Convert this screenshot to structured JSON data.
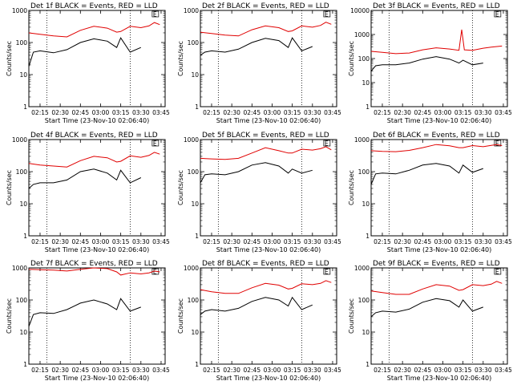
{
  "chart_data": [
    {
      "type": "line",
      "title": "Det 1f BLACK = Events, RED = LLD",
      "flag": "E",
      "xlabel": "Start Time (23-Nov-10 02:06:40)",
      "ylabel": "Counts/sec",
      "y_scale": "log",
      "ylim": [
        1,
        1000
      ],
      "y_ticks": [
        "1",
        "10",
        "100",
        "1000"
      ],
      "x_ticks": [
        "02:15",
        "02:30",
        "02:45",
        "03:00",
        "03:15",
        "03:30",
        "03:45"
      ],
      "xlim": [
        "02:06:40",
        "03:48:00"
      ],
      "vlines": [
        "02:20:00",
        "03:22:00"
      ],
      "series": [
        {
          "color": "#e00000",
          "x": [
            "02:06:40",
            "02:15",
            "02:25",
            "02:35",
            "02:45",
            "02:55",
            "03:05",
            "03:12",
            "03:15",
            "03:22",
            "03:30",
            "03:36",
            "03:40",
            "03:44"
          ],
          "y": [
            200,
            180,
            160,
            150,
            240,
            320,
            280,
            210,
            220,
            320,
            290,
            330,
            420,
            360
          ]
        },
        {
          "color": "#000000",
          "x": [
            "02:06:40",
            "02:10",
            "02:15",
            "02:25",
            "02:35",
            "02:45",
            "02:55",
            "03:05",
            "03:12",
            "03:15",
            "03:22",
            "03:30"
          ],
          "y": [
            18,
            50,
            55,
            48,
            60,
            100,
            130,
            110,
            70,
            140,
            50,
            70
          ]
        }
      ]
    },
    {
      "type": "line",
      "title": "Det 2f BLACK = Events, RED = LLD",
      "flag": "E",
      "xlabel": "Start Time (23-Nov-10 02:06:40)",
      "ylabel": "Counts/sec",
      "y_scale": "log",
      "ylim": [
        1,
        1000
      ],
      "y_ticks": [
        "1",
        "10",
        "100",
        "1000"
      ],
      "x_ticks": [
        "02:15",
        "02:30",
        "02:45",
        "03:00",
        "03:15",
        "03:30",
        "03:45"
      ],
      "xlim": [
        "02:06:40",
        "03:48:00"
      ],
      "vlines": [
        "02:20:00",
        "03:22:00"
      ],
      "series": [
        {
          "color": "#e00000",
          "x": [
            "02:06:40",
            "02:15",
            "02:25",
            "02:35",
            "02:45",
            "02:55",
            "03:05",
            "03:12",
            "03:15",
            "03:22",
            "03:30",
            "03:36",
            "03:40",
            "03:44"
          ],
          "y": [
            210,
            190,
            170,
            160,
            250,
            330,
            290,
            220,
            230,
            330,
            300,
            340,
            430,
            370
          ]
        },
        {
          "color": "#000000",
          "x": [
            "02:06:40",
            "02:10",
            "02:15",
            "02:25",
            "02:35",
            "02:45",
            "02:55",
            "03:05",
            "03:12",
            "03:15",
            "03:22",
            "03:30"
          ],
          "y": [
            40,
            50,
            55,
            50,
            62,
            100,
            135,
            115,
            70,
            140,
            55,
            75
          ]
        }
      ]
    },
    {
      "type": "line",
      "title": "Det 3f BLACK = Events, RED = LLD",
      "flag": "E",
      "xlabel": "Start Time (23-Nov-10 02:06:40)",
      "ylabel": "Counts/sec",
      "y_scale": "log",
      "ylim": [
        1,
        10000
      ],
      "y_ticks": [
        "1",
        "10",
        "100",
        "1000",
        "10000"
      ],
      "x_ticks": [
        "02:15",
        "02:30",
        "02:45",
        "03:00",
        "03:15",
        "03:30",
        "03:45"
      ],
      "xlim": [
        "02:06:40",
        "03:48:00"
      ],
      "vlines": [
        "02:20:00",
        "03:22:00"
      ],
      "series": [
        {
          "color": "#e00000",
          "x": [
            "02:06:40",
            "02:15",
            "02:25",
            "02:35",
            "02:45",
            "02:55",
            "03:05",
            "03:12",
            "03:14",
            "03:16",
            "03:22",
            "03:30",
            "03:36",
            "03:44"
          ],
          "y": [
            200,
            180,
            160,
            170,
            230,
            280,
            250,
            220,
            1600,
            230,
            220,
            270,
            300,
            330
          ]
        },
        {
          "color": "#000000",
          "x": [
            "02:06:40",
            "02:10",
            "02:15",
            "02:25",
            "02:35",
            "02:45",
            "02:55",
            "03:05",
            "03:12",
            "03:15",
            "03:22",
            "03:30"
          ],
          "y": [
            30,
            50,
            55,
            55,
            65,
            95,
            120,
            95,
            65,
            85,
            55,
            65
          ]
        }
      ]
    },
    {
      "type": "line",
      "title": "Det 4f BLACK = Events, RED = LLD",
      "flag": "E",
      "xlabel": "Start Time (23-Nov-10 02:06:40)",
      "ylabel": "Counts/sec",
      "y_scale": "log",
      "ylim": [
        1,
        1000
      ],
      "y_ticks": [
        "1",
        "10",
        "100",
        "1000"
      ],
      "x_ticks": [
        "02:15",
        "02:30",
        "02:45",
        "03:00",
        "03:15",
        "03:30",
        "03:45"
      ],
      "xlim": [
        "02:06:40",
        "03:48:00"
      ],
      "vlines": [
        "02:20:00",
        "03:22:00"
      ],
      "series": [
        {
          "color": "#e00000",
          "x": [
            "02:06:40",
            "02:15",
            "02:25",
            "02:35",
            "02:45",
            "02:55",
            "03:05",
            "03:12",
            "03:15",
            "03:22",
            "03:30",
            "03:36",
            "03:40",
            "03:44"
          ],
          "y": [
            180,
            160,
            150,
            140,
            220,
            300,
            270,
            200,
            210,
            310,
            280,
            320,
            400,
            350
          ]
        },
        {
          "color": "#000000",
          "x": [
            "02:06:40",
            "02:10",
            "02:15",
            "02:25",
            "02:35",
            "02:45",
            "02:55",
            "03:05",
            "03:12",
            "03:15",
            "03:22",
            "03:30"
          ],
          "y": [
            30,
            40,
            45,
            45,
            55,
            100,
            120,
            90,
            55,
            110,
            45,
            65
          ]
        }
      ]
    },
    {
      "type": "line",
      "title": "Det 5f BLACK = Events, RED = LLD",
      "flag": "E",
      "xlabel": "Start Time (23-Nov-10 02:06:40)",
      "ylabel": "Counts/sec",
      "y_scale": "log",
      "ylim": [
        1,
        1000
      ],
      "y_ticks": [
        "1",
        "10",
        "100",
        "1000"
      ],
      "x_ticks": [
        "02:15",
        "02:30",
        "02:45",
        "03:00",
        "03:15",
        "03:30",
        "03:45"
      ],
      "xlim": [
        "02:06:40",
        "03:48:00"
      ],
      "vlines": [
        "02:20:00",
        "03:22:00"
      ],
      "series": [
        {
          "color": "#e00000",
          "x": [
            "02:06:40",
            "02:15",
            "02:25",
            "02:35",
            "02:45",
            "02:55",
            "03:05",
            "03:12",
            "03:15",
            "03:22",
            "03:30",
            "03:36",
            "03:40",
            "03:44"
          ],
          "y": [
            260,
            250,
            240,
            260,
            380,
            560,
            450,
            380,
            380,
            500,
            470,
            520,
            600,
            480
          ]
        },
        {
          "color": "#000000",
          "x": [
            "02:06:40",
            "02:10",
            "02:15",
            "02:25",
            "02:35",
            "02:45",
            "02:55",
            "03:05",
            "03:12",
            "03:15",
            "03:22",
            "03:30"
          ],
          "y": [
            45,
            80,
            85,
            80,
            100,
            160,
            190,
            150,
            90,
            120,
            90,
            110
          ]
        }
      ]
    },
    {
      "type": "line",
      "title": "Det 6f BLACK = Events, RED = LLD",
      "flag": "E",
      "xlabel": "Start Time (23-Nov-10 02:06:40)",
      "ylabel": "Counts/sec",
      "y_scale": "log",
      "ylim": [
        1,
        1000
      ],
      "y_ticks": [
        "1",
        "10",
        "100",
        "1000"
      ],
      "x_ticks": [
        "02:15",
        "02:30",
        "02:45",
        "03:00",
        "03:15",
        "03:30",
        "03:45"
      ],
      "xlim": [
        "02:06:40",
        "03:48:00"
      ],
      "vlines": [
        "02:20:00",
        "03:22:00"
      ],
      "series": [
        {
          "color": "#e00000",
          "x": [
            "02:06:40",
            "02:15",
            "02:25",
            "02:35",
            "02:45",
            "02:55",
            "03:05",
            "03:12",
            "03:15",
            "03:22",
            "03:30",
            "03:36",
            "03:40",
            "03:44"
          ],
          "y": [
            450,
            430,
            420,
            460,
            560,
            700,
            640,
            560,
            560,
            650,
            600,
            660,
            700,
            650
          ]
        },
        {
          "color": "#000000",
          "x": [
            "02:06:40",
            "02:10",
            "02:15",
            "02:25",
            "02:35",
            "02:45",
            "02:55",
            "03:05",
            "03:12",
            "03:15",
            "03:22",
            "03:30"
          ],
          "y": [
            40,
            85,
            90,
            85,
            110,
            160,
            180,
            150,
            90,
            160,
            95,
            125
          ]
        }
      ]
    },
    {
      "type": "line",
      "title": "Det 7f BLACK = Events, RED = LLD",
      "flag": "E",
      "xlabel": "Start Time (23-Nov-10 02:06:40)",
      "ylabel": "Counts/sec",
      "y_scale": "log",
      "ylim": [
        1,
        1000
      ],
      "y_ticks": [
        "1",
        "10",
        "100",
        "1000"
      ],
      "x_ticks": [
        "02:15",
        "02:30",
        "02:45",
        "03:00",
        "03:15",
        "03:30",
        "03:45"
      ],
      "xlim": [
        "02:06:40",
        "03:48:00"
      ],
      "vlines": [
        "02:20:00",
        "03:22:00"
      ],
      "series": [
        {
          "color": "#e00000",
          "x": [
            "02:06:40",
            "02:15",
            "02:25",
            "02:35",
            "02:45",
            "02:55",
            "03:05",
            "03:12",
            "03:15",
            "03:22",
            "03:30",
            "03:36",
            "03:40",
            "03:44"
          ],
          "y": [
            900,
            880,
            850,
            800,
            900,
            1000,
            950,
            750,
            600,
            700,
            650,
            700,
            800,
            750
          ]
        },
        {
          "color": "#000000",
          "x": [
            "02:06:40",
            "02:10",
            "02:15",
            "02:25",
            "02:35",
            "02:45",
            "02:55",
            "03:05",
            "03:12",
            "03:15",
            "03:22",
            "03:30"
          ],
          "y": [
            15,
            35,
            40,
            38,
            50,
            80,
            100,
            75,
            50,
            110,
            45,
            60
          ]
        }
      ]
    },
    {
      "type": "line",
      "title": "Det 8f BLACK = Events, RED = LLD",
      "flag": "E",
      "xlabel": "Start Time (23-Nov-10 02:06:40)",
      "ylabel": "Counts/sec",
      "y_scale": "log",
      "ylim": [
        1,
        1000
      ],
      "y_ticks": [
        "1",
        "10",
        "100",
        "1000"
      ],
      "x_ticks": [
        "02:15",
        "02:30",
        "02:45",
        "03:00",
        "03:15",
        "03:30",
        "03:45"
      ],
      "xlim": [
        "02:06:40",
        "03:48:00"
      ],
      "vlines": [
        "02:20:00",
        "03:22:00"
      ],
      "series": [
        {
          "color": "#e00000",
          "x": [
            "02:06:40",
            "02:15",
            "02:25",
            "02:35",
            "02:45",
            "02:55",
            "03:05",
            "03:12",
            "03:15",
            "03:22",
            "03:30",
            "03:36",
            "03:40",
            "03:44"
          ],
          "y": [
            210,
            180,
            160,
            160,
            240,
            330,
            290,
            220,
            230,
            320,
            300,
            330,
            400,
            350
          ]
        },
        {
          "color": "#000000",
          "x": [
            "02:06:40",
            "02:10",
            "02:15",
            "02:25",
            "02:35",
            "02:45",
            "02:55",
            "03:05",
            "03:12",
            "03:15",
            "03:22",
            "03:30"
          ],
          "y": [
            35,
            45,
            50,
            45,
            55,
            90,
            120,
            100,
            65,
            120,
            50,
            70
          ]
        }
      ]
    },
    {
      "type": "line",
      "title": "Det 9f BLACK = Events, RED = LLD",
      "flag": "E",
      "xlabel": "Start Time (23-Nov-10 02:06:40)",
      "ylabel": "Counts/sec",
      "y_scale": "log",
      "ylim": [
        1,
        1000
      ],
      "y_ticks": [
        "1",
        "10",
        "100",
        "1000"
      ],
      "x_ticks": [
        "02:15",
        "02:30",
        "02:45",
        "03:00",
        "03:15",
        "03:30",
        "03:45"
      ],
      "xlim": [
        "02:06:40",
        "03:48:00"
      ],
      "vlines": [
        "02:20:00",
        "03:22:00"
      ],
      "series": [
        {
          "color": "#e00000",
          "x": [
            "02:06:40",
            "02:15",
            "02:25",
            "02:35",
            "02:45",
            "02:55",
            "03:05",
            "03:12",
            "03:15",
            "03:22",
            "03:30",
            "03:36",
            "03:40",
            "03:44"
          ],
          "y": [
            190,
            170,
            150,
            150,
            220,
            300,
            270,
            200,
            210,
            300,
            280,
            310,
            380,
            330
          ]
        },
        {
          "color": "#000000",
          "x": [
            "02:06:40",
            "02:10",
            "02:15",
            "02:25",
            "02:35",
            "02:45",
            "02:55",
            "03:05",
            "03:12",
            "03:15",
            "03:22",
            "03:30"
          ],
          "y": [
            30,
            40,
            45,
            42,
            52,
            85,
            110,
            95,
            60,
            100,
            45,
            60
          ]
        }
      ]
    }
  ]
}
